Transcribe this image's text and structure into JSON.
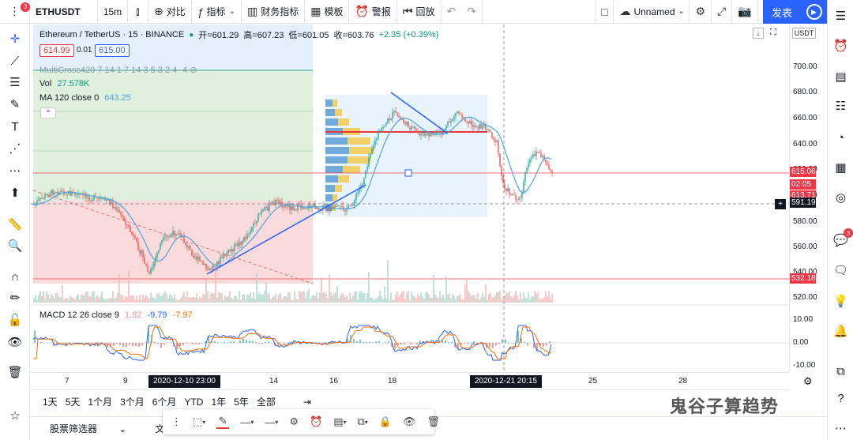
{
  "toolbar": {
    "symbol": "ETHUSDT",
    "interval": "15m",
    "compare": "对比",
    "indicators": "指标",
    "financials": "财务指标",
    "templates": "模板",
    "alert": "警报",
    "replay": "回放",
    "layout_name": "Unnamed",
    "publish": "发表",
    "menu_badge": "3"
  },
  "legend": {
    "title": "Ethereum / TetherUS · 15 · BINANCE",
    "open": "开=601.29",
    "high": "高=607.23",
    "low": "低=601.05",
    "close": "收=603.76",
    "change": "+2.35 (+0.39%)",
    "sell_price": "614.99",
    "spread": "0.01",
    "buy_price": "615.00"
  },
  "indicators": {
    "multicross": "MultiCross420 7 14 1 7 14 3 5 3 2 4 -4",
    "vol_label": "Vol",
    "vol_value": "27.578K",
    "ma_label": "MA 120 close 0",
    "ma_value": "643.25",
    "macd_label": "MACD 12 26 close 9",
    "macd_v1": "1.82",
    "macd_v2": "-9.79",
    "macd_v3": "-7.97"
  },
  "price_axis": {
    "currency": "USDT",
    "labels": [
      "700.00",
      "680.00",
      "660.00",
      "640.00",
      "620.00",
      "600.00",
      "580.00",
      "560.00",
      "540.00",
      "520.00"
    ],
    "macd_labels": [
      "10.00",
      "0.00",
      "-10.00"
    ],
    "tag_current": "615.06",
    "tag_countdown": "02:05",
    "tag_level": "613.71",
    "tag_cursor": "591.19",
    "tag_bottom": "532.18"
  },
  "time_axis": {
    "labels": [
      "7",
      "9",
      "14",
      "16",
      "18",
      "25",
      "28"
    ],
    "cursor_left": "2020-12-10   23:00",
    "cursor_right": "2020-12-21   20:15"
  },
  "ranges": [
    "1天",
    "5天",
    "1个月",
    "3个月",
    "6个月",
    "YTD",
    "1年",
    "5年",
    "全部"
  ],
  "bottom": {
    "screener": "股票筛选器",
    "notes": "文本笔记"
  },
  "watermark": "鬼谷子算趋势",
  "right_badge": "3",
  "colors": {
    "accent": "#2962ff",
    "up": "#089981",
    "down": "#f23645",
    "ma": "#4aa3df"
  }
}
